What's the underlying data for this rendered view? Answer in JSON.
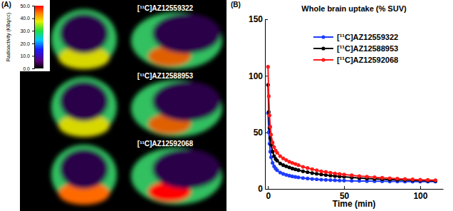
{
  "chart_data": [
    {
      "type": "image",
      "annotations": [
        "(A)"
      ],
      "labels": [
        "[¹¹C]AZ12559322",
        "[¹¹C]AZ12588953",
        "[¹¹C]AZ12592068"
      ],
      "colorbar": {
        "label": "Radioactivity (KBq/cc)",
        "range": [
          0,
          50
        ],
        "ticks": [
          {
            "value": 0,
            "label": "0.0"
          },
          {
            "value": 10,
            "label": "10.0"
          },
          {
            "value": 20,
            "label": "20.0"
          },
          {
            "value": 30,
            "label": "30.0"
          },
          {
            "value": 40,
            "label": "40.0"
          },
          {
            "value": 50,
            "label": "50.0"
          }
        ]
      }
    },
    {
      "type": "line",
      "annotations": [
        "(B)"
      ],
      "title": "Whole brain uptake (% SUV)",
      "x_label": "Time (min)",
      "x": [
        0,
        0.5,
        1,
        1.5,
        2,
        3,
        4,
        5,
        6,
        8,
        10,
        12,
        14,
        16,
        18,
        20,
        23,
        26,
        29,
        32,
        35,
        38,
        41,
        44,
        47,
        50,
        55,
        60,
        65,
        70,
        75,
        80,
        85,
        90,
        95,
        100,
        105,
        110
      ],
      "series": [
        {
          "name": "[¹¹C]AZ12559322",
          "color": "#1e3cff",
          "values": [
            67,
            50,
            40,
            33,
            28,
            23,
            20,
            18,
            16.5,
            14.5,
            13.3,
            12.4,
            11.7,
            11.1,
            10.6,
            10.2,
            9.6,
            9.2,
            8.8,
            8.5,
            8.2,
            8,
            7.8,
            7.6,
            7.4,
            7.3,
            7.1,
            7,
            6.9,
            6.8,
            6.7,
            6.6,
            6.6,
            6.5,
            6.5,
            6.5,
            6.5,
            6.5
          ]
        },
        {
          "name": "[¹¹C]AZ12588953",
          "color": "#000000",
          "values": [
            92,
            68,
            54,
            45,
            39,
            33,
            29,
            26.5,
            25,
            22.5,
            21,
            20,
            19,
            18,
            17.3,
            16.6,
            15.6,
            14.8,
            14,
            13.4,
            12.8,
            12.3,
            11.8,
            11.4,
            11,
            10.7,
            10.1,
            9.6,
            9.2,
            8.8,
            8.5,
            8.2,
            8,
            7.8,
            7.6,
            7.4,
            7.2,
            7.1
          ]
        },
        {
          "name": "[¹¹C]AZ12592068",
          "color": "#ff1a1a",
          "values": [
            108,
            82,
            65,
            55,
            48,
            41,
            37,
            34,
            32,
            29,
            27,
            25.5,
            24,
            23,
            22,
            21,
            19.5,
            18.5,
            17.5,
            16.5,
            15.5,
            15,
            14.3,
            13.7,
            13.2,
            12.7,
            12,
            11.3,
            10.8,
            10.3,
            9.8,
            9.4,
            9,
            8.7,
            8.4,
            8.1,
            7.9,
            7.7
          ]
        }
      ],
      "xlim": [
        -2,
        115
      ],
      "xticks": [
        0,
        50,
        100
      ],
      "ylim": [
        0,
        150
      ],
      "yticks": [
        0,
        50,
        100,
        150
      ],
      "marker": "circle",
      "legend": "upper right",
      "grid": false
    }
  ]
}
